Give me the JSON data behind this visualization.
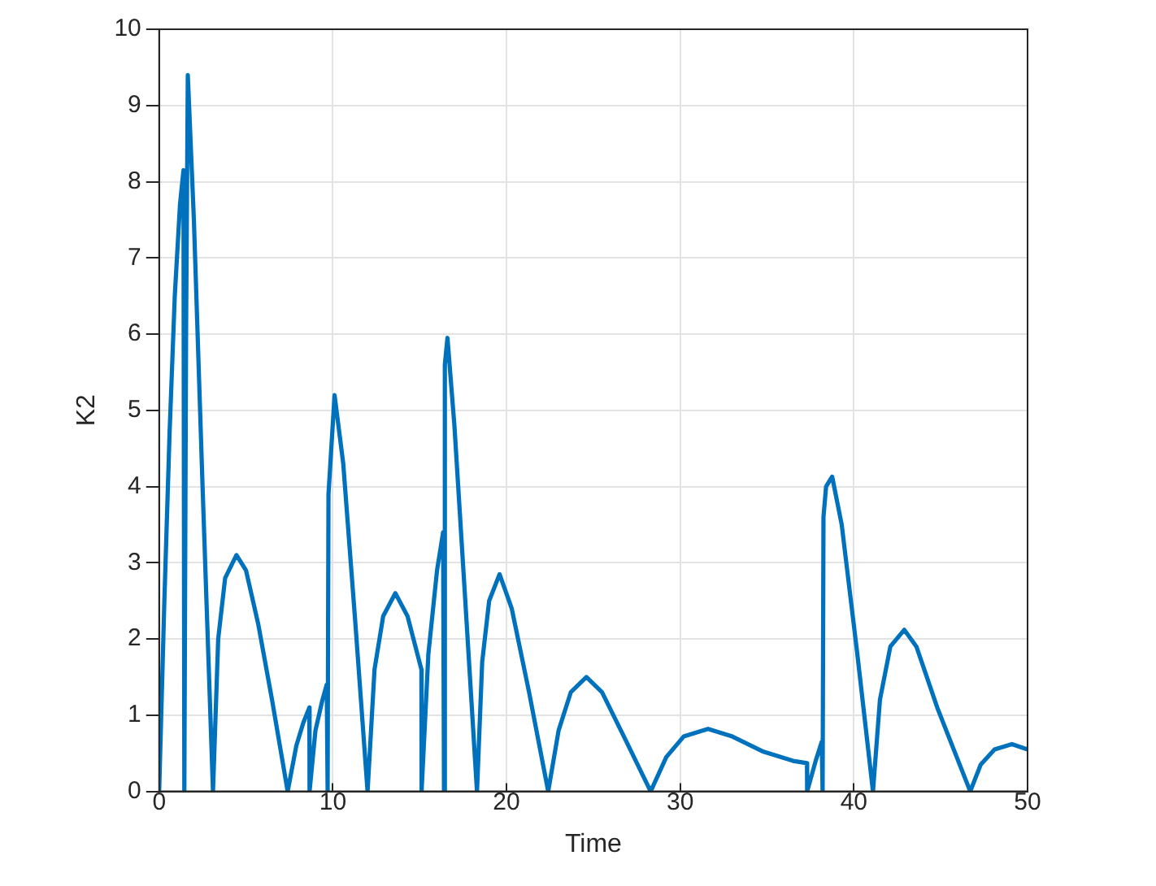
{
  "chart_data": {
    "type": "line",
    "xlabel": "Time",
    "ylabel": "K2",
    "xlim": [
      0,
      50
    ],
    "xticks": [
      0,
      10,
      20,
      30,
      40,
      50
    ],
    "ylim": [
      0,
      10
    ],
    "yticks": [
      0,
      1,
      2,
      3,
      4,
      5,
      6,
      7,
      8,
      9,
      10
    ],
    "grid": true,
    "legend": false,
    "marker": "none",
    "line_style": "solid",
    "series": [
      {
        "color": "#0072bd",
        "x": [
          0,
          0.3,
          0.6,
          0.9,
          1.2,
          1.4,
          1.45,
          1.55,
          1.65,
          2.0,
          2.5,
          3.1,
          3.4,
          3.8,
          4.45,
          5.0,
          5.7,
          6.5,
          7.4,
          7.9,
          8.3,
          8.65,
          8.66,
          9.0,
          9.4,
          9.65,
          9.7,
          9.75,
          10.1,
          10.6,
          11.3,
          12.0,
          12.4,
          12.9,
          13.6,
          14.3,
          15.1,
          15.11,
          15.5,
          16.0,
          16.35,
          16.4,
          16.45,
          16.6,
          17.0,
          17.6,
          18.3,
          18.6,
          19.0,
          19.6,
          20.3,
          21.3,
          22.4,
          23.0,
          23.7,
          24.6,
          25.5,
          26.8,
          28.3,
          29.2,
          30.2,
          31.6,
          33.0,
          34.8,
          36.5,
          37.3,
          37.31,
          37.8,
          38.15,
          38.2,
          38.25,
          38.4,
          38.75,
          39.3,
          40.2,
          41.1,
          41.5,
          42.1,
          42.9,
          43.6,
          44.8,
          46.7,
          47.3,
          48.1,
          49.1,
          50
        ],
        "values": [
          0,
          2.5,
          4.7,
          6.5,
          7.7,
          8.15,
          0,
          6,
          9.4,
          7.5,
          4,
          0,
          2.0,
          2.8,
          3.1,
          2.9,
          2.2,
          1.2,
          0,
          0.6,
          0.9,
          1.1,
          0,
          0.8,
          1.2,
          1.4,
          0,
          3.9,
          5.2,
          4.3,
          2.2,
          0,
          1.6,
          2.3,
          2.6,
          2.3,
          1.6,
          0,
          1.8,
          2.9,
          3.4,
          0,
          5.6,
          5.95,
          4.8,
          2.6,
          0,
          1.7,
          2.5,
          2.85,
          2.4,
          1.3,
          0,
          0.8,
          1.3,
          1.5,
          1.3,
          0.7,
          0,
          0.45,
          0.72,
          0.82,
          0.72,
          0.52,
          0.4,
          0.37,
          0,
          0.4,
          0.65,
          0,
          3.6,
          4.0,
          4.13,
          3.5,
          1.8,
          0,
          1.2,
          1.9,
          2.12,
          1.9,
          1.1,
          0,
          0.35,
          0.55,
          0.62,
          0.55
        ]
      }
    ]
  }
}
